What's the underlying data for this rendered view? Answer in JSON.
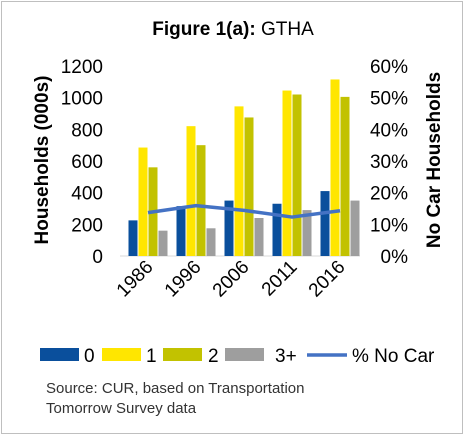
{
  "chart_data": {
    "type": "bar",
    "title_bold": "Figure 1(a):",
    "title_rest": " GTHA",
    "categories": [
      "1986",
      "1996",
      "2006",
      "2011",
      "2016"
    ],
    "ylabel": "Households (000s)",
    "y2label": "No Car Households",
    "ylim": [
      0,
      1200
    ],
    "y2lim": [
      0,
      0.6
    ],
    "yticks": [
      "0",
      "200",
      "400",
      "600",
      "800",
      "1000",
      "1200"
    ],
    "y2ticks": [
      "0%",
      "10%",
      "20%",
      "30%",
      "40%",
      "50%",
      "60%"
    ],
    "series": [
      {
        "name": "0",
        "color": "#0a4f9c",
        "values": [
          225,
          315,
          350,
          330,
          410
        ]
      },
      {
        "name": "1",
        "color": "#ffe600",
        "values": [
          685,
          820,
          945,
          1045,
          1115
        ]
      },
      {
        "name": "2",
        "color": "#c2c200",
        "values": [
          560,
          700,
          875,
          1020,
          1005
        ]
      },
      {
        "name": "3+",
        "color": "#9e9e9e",
        "values": [
          160,
          175,
          240,
          290,
          350
        ]
      }
    ],
    "line_series": {
      "name": "% No Car",
      "color": "#4472c4",
      "values": [
        0.137,
        0.159,
        0.144,
        0.123,
        0.143
      ]
    },
    "legend_position": "bottom",
    "grid": false
  },
  "source": {
    "line1": "Source: CUR, based on Transportation",
    "line2": "Tomorrow Survey data"
  }
}
